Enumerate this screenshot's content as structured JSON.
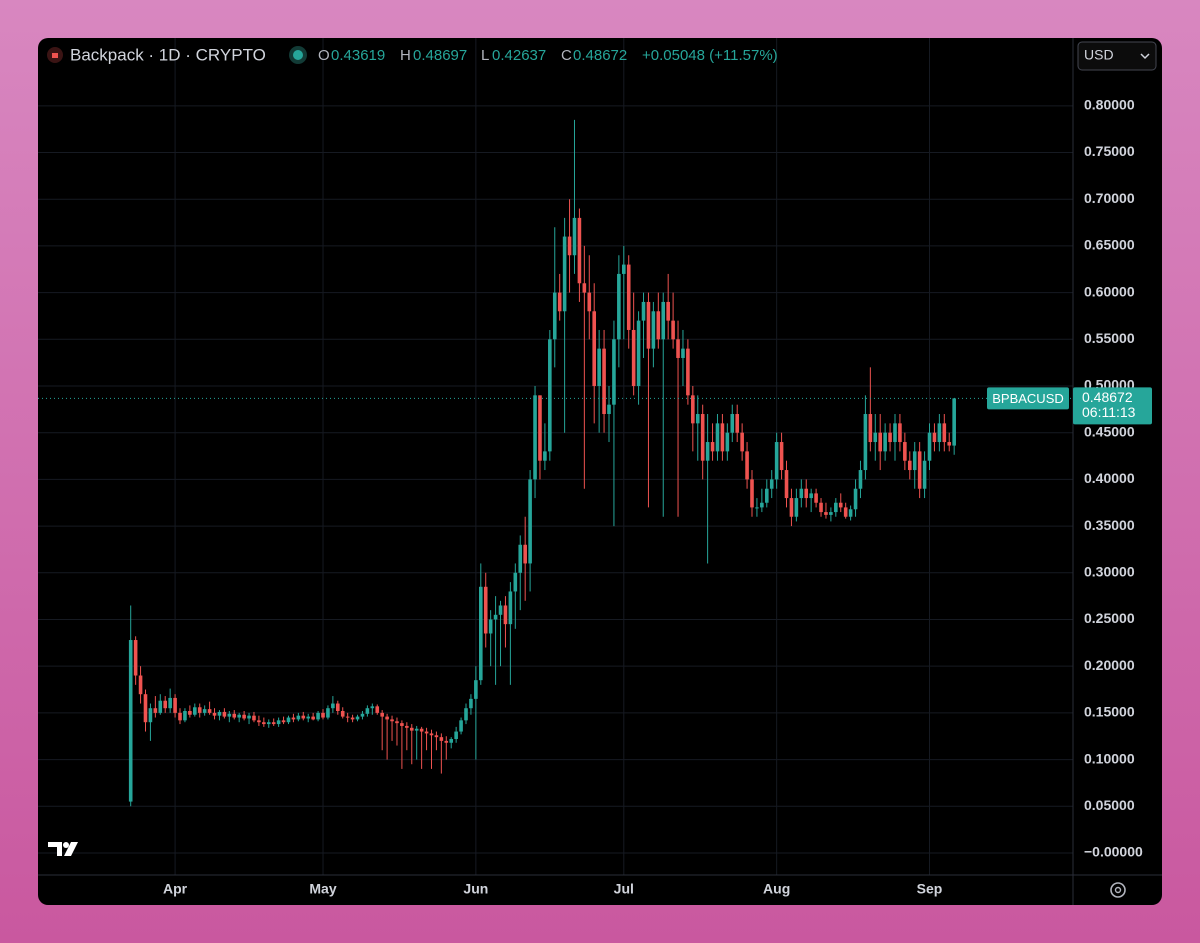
{
  "header": {
    "symbol": "Backpack · 1D · CRYPTO",
    "o": "O",
    "h": "H",
    "l": "L",
    "c": "C",
    "change": "+0.05048 (+11.57%)",
    "currency": "USD"
  },
  "chart_data": {
    "type": "candlestick",
    "up_color": "#26a69a",
    "down_color": "#ef5350",
    "grid": true,
    "price_tag": {
      "name": "BPBACUSD",
      "countdown": "06:11:13"
    },
    "ylim": [
      -0.0236,
      0.833
    ],
    "yticks": [
      {
        "value": 0,
        "label": "−0.00000"
      },
      {
        "value": 0.05,
        "label": "0.05000"
      },
      {
        "value": 0.1,
        "label": "0.10000"
      },
      {
        "value": 0.15,
        "label": "0.15000"
      },
      {
        "value": 0.2,
        "label": "0.20000"
      },
      {
        "value": 0.25,
        "label": "0.25000"
      },
      {
        "value": 0.3,
        "label": "0.30000"
      },
      {
        "value": 0.35,
        "label": "0.35000"
      },
      {
        "value": 0.4,
        "label": "0.40000"
      },
      {
        "value": 0.45,
        "label": "0.45000"
      },
      {
        "value": 0.5,
        "label": "0.50000"
      },
      {
        "value": 0.55,
        "label": "0.55000"
      },
      {
        "value": 0.6,
        "label": "0.60000"
      },
      {
        "value": 0.65,
        "label": "0.65000"
      },
      {
        "value": 0.7,
        "label": "0.70000"
      },
      {
        "value": 0.75,
        "label": "0.75000"
      },
      {
        "value": 0.8,
        "label": "0.80000"
      }
    ],
    "xlim": [
      -18.8,
      191.1
    ],
    "xticks": [
      {
        "value": 9,
        "label": "Apr"
      },
      {
        "value": 39,
        "label": "May"
      },
      {
        "value": 70,
        "label": "Jun"
      },
      {
        "value": 100,
        "label": "Jul"
      },
      {
        "value": 131,
        "label": "Aug"
      },
      {
        "value": 162,
        "label": "Sep"
      }
    ],
    "ohlc": [
      [
        0.055,
        0.265,
        0.05,
        0.228
      ],
      [
        0.228,
        0.232,
        0.18,
        0.19
      ],
      [
        0.19,
        0.2,
        0.16,
        0.17
      ],
      [
        0.17,
        0.175,
        0.13,
        0.14
      ],
      [
        0.14,
        0.16,
        0.12,
        0.155
      ],
      [
        0.155,
        0.168,
        0.145,
        0.15
      ],
      [
        0.15,
        0.17,
        0.148,
        0.163
      ],
      [
        0.163,
        0.168,
        0.15,
        0.155
      ],
      [
        0.155,
        0.176,
        0.15,
        0.166
      ],
      [
        0.166,
        0.17,
        0.145,
        0.15
      ],
      [
        0.15,
        0.155,
        0.138,
        0.142
      ],
      [
        0.142,
        0.155,
        0.14,
        0.152
      ],
      [
        0.152,
        0.158,
        0.145,
        0.148
      ],
      [
        0.148,
        0.16,
        0.146,
        0.156
      ],
      [
        0.156,
        0.16,
        0.145,
        0.15
      ],
      [
        0.15,
        0.158,
        0.147,
        0.154
      ],
      [
        0.154,
        0.162,
        0.148,
        0.15
      ],
      [
        0.15,
        0.155,
        0.143,
        0.147
      ],
      [
        0.147,
        0.153,
        0.142,
        0.151
      ],
      [
        0.151,
        0.155,
        0.144,
        0.146
      ],
      [
        0.146,
        0.152,
        0.14,
        0.149
      ],
      [
        0.149,
        0.153,
        0.143,
        0.145
      ],
      [
        0.145,
        0.15,
        0.14,
        0.148
      ],
      [
        0.148,
        0.152,
        0.142,
        0.144
      ],
      [
        0.144,
        0.15,
        0.138,
        0.147
      ],
      [
        0.147,
        0.151,
        0.14,
        0.142
      ],
      [
        0.142,
        0.147,
        0.136,
        0.14
      ],
      [
        0.14,
        0.145,
        0.135,
        0.138
      ],
      [
        0.138,
        0.143,
        0.134,
        0.14
      ],
      [
        0.14,
        0.144,
        0.136,
        0.138
      ],
      [
        0.138,
        0.145,
        0.135,
        0.142
      ],
      [
        0.142,
        0.146,
        0.138,
        0.14
      ],
      [
        0.14,
        0.147,
        0.138,
        0.145
      ],
      [
        0.145,
        0.149,
        0.14,
        0.143
      ],
      [
        0.143,
        0.15,
        0.141,
        0.147
      ],
      [
        0.147,
        0.151,
        0.142,
        0.144
      ],
      [
        0.144,
        0.149,
        0.14,
        0.146
      ],
      [
        0.146,
        0.15,
        0.142,
        0.143
      ],
      [
        0.143,
        0.152,
        0.141,
        0.15
      ],
      [
        0.15,
        0.154,
        0.143,
        0.145
      ],
      [
        0.145,
        0.158,
        0.143,
        0.155
      ],
      [
        0.155,
        0.168,
        0.15,
        0.16
      ],
      [
        0.16,
        0.163,
        0.148,
        0.152
      ],
      [
        0.152,
        0.156,
        0.144,
        0.146
      ],
      [
        0.146,
        0.15,
        0.14,
        0.145
      ],
      [
        0.145,
        0.148,
        0.14,
        0.143
      ],
      [
        0.143,
        0.148,
        0.141,
        0.146
      ],
      [
        0.146,
        0.152,
        0.143,
        0.149
      ],
      [
        0.149,
        0.158,
        0.146,
        0.155
      ],
      [
        0.155,
        0.16,
        0.148,
        0.157
      ],
      [
        0.157,
        0.159,
        0.148,
        0.15
      ],
      [
        0.15,
        0.153,
        0.11,
        0.146
      ],
      [
        0.146,
        0.149,
        0.1,
        0.143
      ],
      [
        0.143,
        0.147,
        0.12,
        0.141
      ],
      [
        0.141,
        0.145,
        0.115,
        0.139
      ],
      [
        0.139,
        0.142,
        0.09,
        0.136
      ],
      [
        0.136,
        0.14,
        0.11,
        0.134
      ],
      [
        0.134,
        0.138,
        0.095,
        0.131
      ],
      [
        0.131,
        0.136,
        0.1,
        0.133
      ],
      [
        0.133,
        0.135,
        0.09,
        0.13
      ],
      [
        0.13,
        0.134,
        0.11,
        0.128
      ],
      [
        0.128,
        0.132,
        0.09,
        0.126
      ],
      [
        0.126,
        0.13,
        0.11,
        0.124
      ],
      [
        0.124,
        0.128,
        0.085,
        0.12
      ],
      [
        0.12,
        0.125,
        0.1,
        0.118
      ],
      [
        0.118,
        0.124,
        0.112,
        0.122
      ],
      [
        0.122,
        0.135,
        0.118,
        0.13
      ],
      [
        0.13,
        0.145,
        0.127,
        0.142
      ],
      [
        0.142,
        0.16,
        0.138,
        0.155
      ],
      [
        0.155,
        0.17,
        0.148,
        0.165
      ],
      [
        0.165,
        0.2,
        0.1,
        0.185
      ],
      [
        0.185,
        0.31,
        0.18,
        0.285
      ],
      [
        0.285,
        0.3,
        0.22,
        0.235
      ],
      [
        0.235,
        0.26,
        0.2,
        0.25
      ],
      [
        0.25,
        0.275,
        0.18,
        0.255
      ],
      [
        0.255,
        0.27,
        0.2,
        0.265
      ],
      [
        0.265,
        0.275,
        0.22,
        0.245
      ],
      [
        0.245,
        0.29,
        0.18,
        0.28
      ],
      [
        0.28,
        0.31,
        0.24,
        0.3
      ],
      [
        0.3,
        0.34,
        0.26,
        0.33
      ],
      [
        0.33,
        0.36,
        0.27,
        0.31
      ],
      [
        0.31,
        0.41,
        0.28,
        0.4
      ],
      [
        0.4,
        0.5,
        0.38,
        0.49
      ],
      [
        0.49,
        0.49,
        0.4,
        0.42
      ],
      [
        0.42,
        0.46,
        0.41,
        0.43
      ],
      [
        0.43,
        0.56,
        0.42,
        0.55
      ],
      [
        0.55,
        0.67,
        0.52,
        0.6
      ],
      [
        0.6,
        0.62,
        0.57,
        0.58
      ],
      [
        0.58,
        0.68,
        0.45,
        0.66
      ],
      [
        0.66,
        0.7,
        0.6,
        0.64
      ],
      [
        0.64,
        0.785,
        0.62,
        0.68
      ],
      [
        0.68,
        0.69,
        0.59,
        0.61
      ],
      [
        0.61,
        0.65,
        0.39,
        0.6
      ],
      [
        0.6,
        0.64,
        0.55,
        0.58
      ],
      [
        0.58,
        0.61,
        0.46,
        0.5
      ],
      [
        0.5,
        0.56,
        0.45,
        0.54
      ],
      [
        0.54,
        0.56,
        0.45,
        0.47
      ],
      [
        0.47,
        0.5,
        0.44,
        0.48
      ],
      [
        0.48,
        0.57,
        0.35,
        0.55
      ],
      [
        0.55,
        0.64,
        0.52,
        0.62
      ],
      [
        0.62,
        0.65,
        0.55,
        0.63
      ],
      [
        0.63,
        0.64,
        0.54,
        0.56
      ],
      [
        0.56,
        0.6,
        0.49,
        0.5
      ],
      [
        0.5,
        0.58,
        0.48,
        0.57
      ],
      [
        0.57,
        0.6,
        0.53,
        0.59
      ],
      [
        0.59,
        0.6,
        0.37,
        0.54
      ],
      [
        0.54,
        0.59,
        0.52,
        0.58
      ],
      [
        0.58,
        0.6,
        0.54,
        0.55
      ],
      [
        0.55,
        0.6,
        0.36,
        0.59
      ],
      [
        0.59,
        0.62,
        0.55,
        0.57
      ],
      [
        0.57,
        0.6,
        0.54,
        0.55
      ],
      [
        0.55,
        0.57,
        0.36,
        0.53
      ],
      [
        0.53,
        0.56,
        0.5,
        0.54
      ],
      [
        0.54,
        0.55,
        0.48,
        0.49
      ],
      [
        0.49,
        0.5,
        0.43,
        0.46
      ],
      [
        0.46,
        0.49,
        0.42,
        0.47
      ],
      [
        0.47,
        0.48,
        0.4,
        0.42
      ],
      [
        0.42,
        0.47,
        0.31,
        0.44
      ],
      [
        0.44,
        0.46,
        0.42,
        0.43
      ],
      [
        0.43,
        0.47,
        0.42,
        0.46
      ],
      [
        0.46,
        0.47,
        0.42,
        0.43
      ],
      [
        0.43,
        0.46,
        0.42,
        0.45
      ],
      [
        0.45,
        0.48,
        0.44,
        0.47
      ],
      [
        0.47,
        0.48,
        0.44,
        0.45
      ],
      [
        0.45,
        0.46,
        0.42,
        0.43
      ],
      [
        0.43,
        0.44,
        0.39,
        0.4
      ],
      [
        0.4,
        0.41,
        0.36,
        0.37
      ],
      [
        0.37,
        0.38,
        0.36,
        0.37
      ],
      [
        0.37,
        0.39,
        0.365,
        0.375
      ],
      [
        0.375,
        0.4,
        0.37,
        0.39
      ],
      [
        0.39,
        0.41,
        0.38,
        0.4
      ],
      [
        0.4,
        0.45,
        0.39,
        0.44
      ],
      [
        0.44,
        0.45,
        0.4,
        0.41
      ],
      [
        0.41,
        0.42,
        0.37,
        0.38
      ],
      [
        0.38,
        0.39,
        0.35,
        0.36
      ],
      [
        0.36,
        0.39,
        0.355,
        0.38
      ],
      [
        0.38,
        0.4,
        0.37,
        0.39
      ],
      [
        0.39,
        0.4,
        0.37,
        0.38
      ],
      [
        0.38,
        0.39,
        0.365,
        0.385
      ],
      [
        0.385,
        0.39,
        0.37,
        0.375
      ],
      [
        0.375,
        0.38,
        0.36,
        0.365
      ],
      [
        0.365,
        0.375,
        0.358,
        0.362
      ],
      [
        0.362,
        0.37,
        0.355,
        0.365
      ],
      [
        0.365,
        0.38,
        0.36,
        0.375
      ],
      [
        0.375,
        0.385,
        0.365,
        0.37
      ],
      [
        0.37,
        0.375,
        0.358,
        0.36
      ],
      [
        0.36,
        0.372,
        0.356,
        0.368
      ],
      [
        0.368,
        0.4,
        0.36,
        0.39
      ],
      [
        0.39,
        0.42,
        0.38,
        0.41
      ],
      [
        0.41,
        0.49,
        0.4,
        0.47
      ],
      [
        0.47,
        0.52,
        0.43,
        0.44
      ],
      [
        0.44,
        0.47,
        0.42,
        0.45
      ],
      [
        0.45,
        0.47,
        0.41,
        0.43
      ],
      [
        0.43,
        0.46,
        0.42,
        0.45
      ],
      [
        0.45,
        0.46,
        0.43,
        0.44
      ],
      [
        0.44,
        0.47,
        0.42,
        0.46
      ],
      [
        0.46,
        0.47,
        0.43,
        0.44
      ],
      [
        0.44,
        0.45,
        0.41,
        0.42
      ],
      [
        0.42,
        0.43,
        0.4,
        0.41
      ],
      [
        0.41,
        0.44,
        0.39,
        0.43
      ],
      [
        0.43,
        0.44,
        0.38,
        0.39
      ],
      [
        0.39,
        0.43,
        0.38,
        0.42
      ],
      [
        0.42,
        0.46,
        0.41,
        0.45
      ],
      [
        0.45,
        0.46,
        0.43,
        0.44
      ],
      [
        0.44,
        0.47,
        0.43,
        0.46
      ],
      [
        0.46,
        0.47,
        0.43,
        0.44
      ],
      [
        0.44,
        0.45,
        0.43,
        0.43624
      ],
      [
        0.43619,
        0.48697,
        0.42637,
        0.48672
      ]
    ]
  }
}
